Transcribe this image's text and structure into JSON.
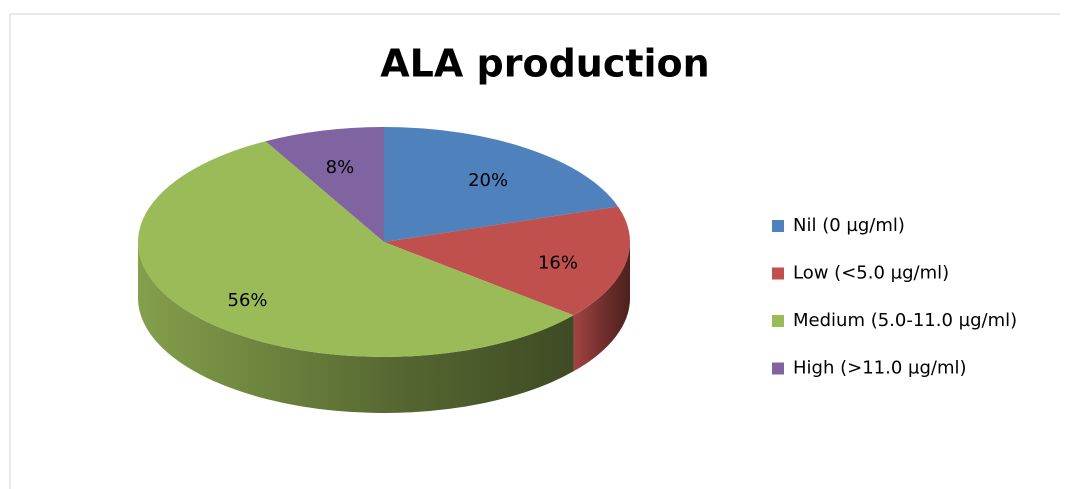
{
  "chart_data": {
    "type": "pie",
    "title": "ALA production",
    "categories": [
      "Nil (0 µg/ml)",
      "Low (<5.0 µg/ml)",
      "Medium (5.0-11.0 µg/ml)",
      "High (>11.0 µg/ml)"
    ],
    "values": [
      20,
      16,
      56,
      8
    ],
    "value_labels": [
      "20%",
      "16%",
      "56%",
      "8%"
    ],
    "colors": [
      "#4f81bd",
      "#c0504d",
      "#9bbb59",
      "#8064a2"
    ],
    "legend": "right"
  }
}
